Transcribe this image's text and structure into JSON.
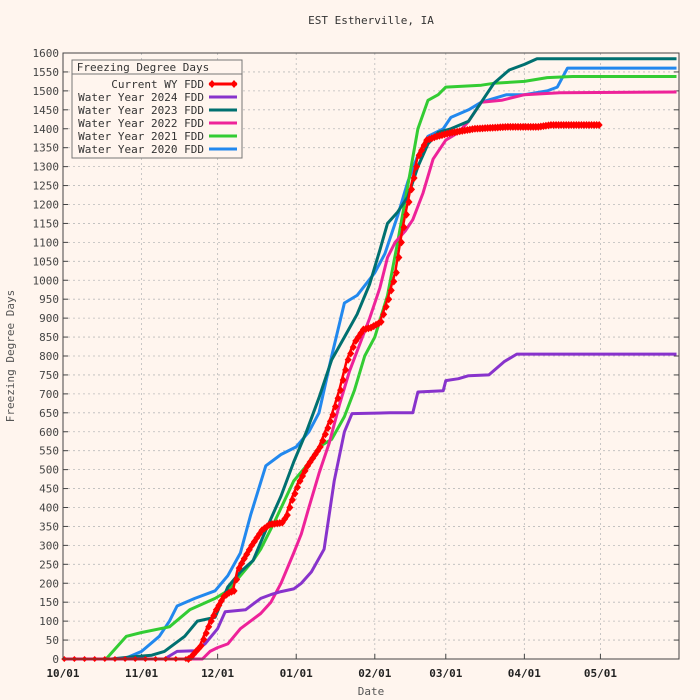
{
  "chart_data": {
    "type": "line",
    "title": "EST Estherville, IA",
    "xlabel": "Date",
    "ylabel": "Freezing Degree Days",
    "x_unit": "date",
    "x_range": [
      "10/01",
      "05/31"
    ],
    "xticks": [
      {
        "label": "10/01",
        "date": "10/01"
      },
      {
        "label": "11/01",
        "date": "11/01"
      },
      {
        "label": "12/01",
        "date": "12/01"
      },
      {
        "label": "01/01",
        "date": "01/01"
      },
      {
        "label": "02/01",
        "date": "02/01"
      },
      {
        "label": "03/01",
        "date": "03/01"
      },
      {
        "label": "04/01",
        "date": "04/01"
      },
      {
        "label": "05/01",
        "date": "05/01"
      }
    ],
    "ylim": [
      0,
      1600
    ],
    "ystep": 50,
    "grid": true,
    "legend": {
      "title": "Freezing Degree Days",
      "position": "top-left"
    },
    "series": [
      {
        "name": "Current WY FDD",
        "color": "#ff0000",
        "marker": "diamond",
        "points": [
          [
            "10/01",
            0
          ],
          [
            "11/01",
            0
          ],
          [
            "11/19",
            0
          ],
          [
            "11/20",
            5
          ],
          [
            "11/24",
            35
          ],
          [
            "11/27",
            85
          ],
          [
            "11/30",
            130
          ],
          [
            "12/03",
            165
          ],
          [
            "12/05",
            175
          ],
          [
            "12/07",
            180
          ],
          [
            "12/09",
            240
          ],
          [
            "12/11",
            265
          ],
          [
            "12/14",
            300
          ],
          [
            "12/18",
            340
          ],
          [
            "12/21",
            355
          ],
          [
            "12/26",
            360
          ],
          [
            "12/28",
            380
          ],
          [
            "12/30",
            420
          ],
          [
            "01/02",
            470
          ],
          [
            "01/05",
            510
          ],
          [
            "01/08",
            540
          ],
          [
            "01/10",
            560
          ],
          [
            "01/13",
            610
          ],
          [
            "01/15",
            645
          ],
          [
            "01/18",
            710
          ],
          [
            "01/21",
            790
          ],
          [
            "01/24",
            840
          ],
          [
            "01/27",
            870
          ],
          [
            "01/30",
            875
          ],
          [
            "02/03",
            890
          ],
          [
            "02/06",
            950
          ],
          [
            "02/09",
            1020
          ],
          [
            "02/12",
            1140
          ],
          [
            "02/15",
            1240
          ],
          [
            "02/18",
            1330
          ],
          [
            "02/21",
            1370
          ],
          [
            "02/25",
            1380
          ],
          [
            "03/03",
            1390
          ],
          [
            "03/12",
            1400
          ],
          [
            "03/25",
            1405
          ],
          [
            "04/06",
            1405
          ],
          [
            "04/11",
            1410
          ],
          [
            "04/30",
            1410
          ]
        ]
      },
      {
        "name": "Water Year 2024 FDD",
        "color": "#8833cc",
        "points": [
          [
            "10/01",
            0
          ],
          [
            "11/10",
            0
          ],
          [
            "11/15",
            20
          ],
          [
            "11/22",
            22
          ],
          [
            "11/26",
            40
          ],
          [
            "12/01",
            80
          ],
          [
            "12/04",
            125
          ],
          [
            "12/12",
            130
          ],
          [
            "12/18",
            160
          ],
          [
            "12/22",
            170
          ],
          [
            "12/26",
            178
          ],
          [
            "12/31",
            185
          ],
          [
            "01/03",
            200
          ],
          [
            "01/07",
            230
          ],
          [
            "01/12",
            290
          ],
          [
            "01/16",
            470
          ],
          [
            "01/20",
            600
          ],
          [
            "01/23",
            648
          ],
          [
            "02/07",
            650
          ],
          [
            "02/16",
            650
          ],
          [
            "02/18",
            705
          ],
          [
            "02/28",
            708
          ],
          [
            "03/01",
            735
          ],
          [
            "03/06",
            740
          ],
          [
            "03/10",
            748
          ],
          [
            "03/18",
            750
          ],
          [
            "03/24",
            785
          ],
          [
            "03/29",
            805
          ],
          [
            "05/31",
            805
          ]
        ]
      },
      {
        "name": "Water Year 2023 FDD",
        "color": "#007070",
        "points": [
          [
            "10/01",
            0
          ],
          [
            "10/20",
            0
          ],
          [
            "10/27",
            5
          ],
          [
            "11/05",
            10
          ],
          [
            "11/10",
            20
          ],
          [
            "11/18",
            60
          ],
          [
            "11/23",
            100
          ],
          [
            "11/30",
            110
          ],
          [
            "12/05",
            190
          ],
          [
            "12/10",
            230
          ],
          [
            "12/15",
            260
          ],
          [
            "12/20",
            340
          ],
          [
            "12/26",
            430
          ],
          [
            "12/31",
            520
          ],
          [
            "01/05",
            600
          ],
          [
            "01/10",
            690
          ],
          [
            "01/15",
            790
          ],
          [
            "01/20",
            850
          ],
          [
            "01/25",
            910
          ],
          [
            "01/30",
            990
          ],
          [
            "02/03",
            1080
          ],
          [
            "02/06",
            1150
          ],
          [
            "02/10",
            1180
          ],
          [
            "02/14",
            1220
          ],
          [
            "02/18",
            1300
          ],
          [
            "02/22",
            1360
          ],
          [
            "02/26",
            1390
          ],
          [
            "03/03",
            1400
          ],
          [
            "03/10",
            1420
          ],
          [
            "03/15",
            1470
          ],
          [
            "03/20",
            1520
          ],
          [
            "03/26",
            1555
          ],
          [
            "04/01",
            1570
          ],
          [
            "04/06",
            1585
          ],
          [
            "05/31",
            1585
          ]
        ]
      },
      {
        "name": "Water Year 2022 FDD",
        "color": "#ee2299",
        "points": [
          [
            "10/01",
            0
          ],
          [
            "11/25",
            0
          ],
          [
            "11/28",
            20
          ],
          [
            "12/01",
            30
          ],
          [
            "12/05",
            40
          ],
          [
            "12/10",
            80
          ],
          [
            "12/14",
            100
          ],
          [
            "12/18",
            120
          ],
          [
            "12/22",
            150
          ],
          [
            "12/26",
            200
          ],
          [
            "12/31",
            280
          ],
          [
            "01/03",
            330
          ],
          [
            "01/06",
            400
          ],
          [
            "01/10",
            490
          ],
          [
            "01/14",
            570
          ],
          [
            "01/18",
            670
          ],
          [
            "01/22",
            760
          ],
          [
            "01/26",
            830
          ],
          [
            "01/30",
            900
          ],
          [
            "02/03",
            980
          ],
          [
            "02/06",
            1060
          ],
          [
            "02/09",
            1100
          ],
          [
            "02/13",
            1130
          ],
          [
            "02/16",
            1160
          ],
          [
            "02/20",
            1230
          ],
          [
            "02/24",
            1320
          ],
          [
            "03/01",
            1370
          ],
          [
            "03/06",
            1390
          ],
          [
            "03/10",
            1420
          ],
          [
            "03/15",
            1470
          ],
          [
            "03/23",
            1475
          ],
          [
            "04/01",
            1490
          ],
          [
            "04/15",
            1495
          ],
          [
            "05/31",
            1497
          ]
        ]
      },
      {
        "name": "Water Year 2021 FDD",
        "color": "#33cc33",
        "points": [
          [
            "10/01",
            0
          ],
          [
            "10/18",
            0
          ],
          [
            "10/26",
            60
          ],
          [
            "11/01",
            70
          ],
          [
            "11/12",
            85
          ],
          [
            "11/20",
            130
          ],
          [
            "11/30",
            160
          ],
          [
            "12/05",
            180
          ],
          [
            "12/10",
            220
          ],
          [
            "12/15",
            260
          ],
          [
            "12/18",
            290
          ],
          [
            "12/24",
            370
          ],
          [
            "12/31",
            470
          ],
          [
            "01/05",
            510
          ],
          [
            "01/10",
            560
          ],
          [
            "01/15",
            580
          ],
          [
            "01/20",
            640
          ],
          [
            "01/24",
            710
          ],
          [
            "01/28",
            800
          ],
          [
            "02/01",
            850
          ],
          [
            "02/06",
            960
          ],
          [
            "02/10",
            1100
          ],
          [
            "02/14",
            1250
          ],
          [
            "02/18",
            1400
          ],
          [
            "02/22",
            1475
          ],
          [
            "02/26",
            1490
          ],
          [
            "03/01",
            1510
          ],
          [
            "03/15",
            1515
          ],
          [
            "03/20",
            1520
          ],
          [
            "04/01",
            1525
          ],
          [
            "04/10",
            1535
          ],
          [
            "04/20",
            1538
          ],
          [
            "05/31",
            1538
          ]
        ]
      },
      {
        "name": "Water Year 2020 FDD",
        "color": "#2288ee",
        "points": [
          [
            "10/01",
            0
          ],
          [
            "10/25",
            0
          ],
          [
            "11/01",
            20
          ],
          [
            "11/08",
            60
          ],
          [
            "11/12",
            100
          ],
          [
            "11/15",
            140
          ],
          [
            "11/22",
            160
          ],
          [
            "11/30",
            180
          ],
          [
            "12/05",
            220
          ],
          [
            "12/10",
            280
          ],
          [
            "12/14",
            380
          ],
          [
            "12/20",
            510
          ],
          [
            "12/26",
            540
          ],
          [
            "01/01",
            560
          ],
          [
            "01/06",
            600
          ],
          [
            "01/10",
            650
          ],
          [
            "01/15",
            800
          ],
          [
            "01/20",
            940
          ],
          [
            "01/25",
            960
          ],
          [
            "02/01",
            1020
          ],
          [
            "02/05",
            1070
          ],
          [
            "02/10",
            1170
          ],
          [
            "02/14",
            1260
          ],
          [
            "02/18",
            1330
          ],
          [
            "02/22",
            1380
          ],
          [
            "02/28",
            1400
          ],
          [
            "03/03",
            1430
          ],
          [
            "03/10",
            1450
          ],
          [
            "03/15",
            1470
          ],
          [
            "03/20",
            1480
          ],
          [
            "03/25",
            1490
          ],
          [
            "04/01",
            1490
          ],
          [
            "04/10",
            1500
          ],
          [
            "04/14",
            1510
          ],
          [
            "04/18",
            1560
          ],
          [
            "05/31",
            1560
          ]
        ]
      }
    ]
  }
}
